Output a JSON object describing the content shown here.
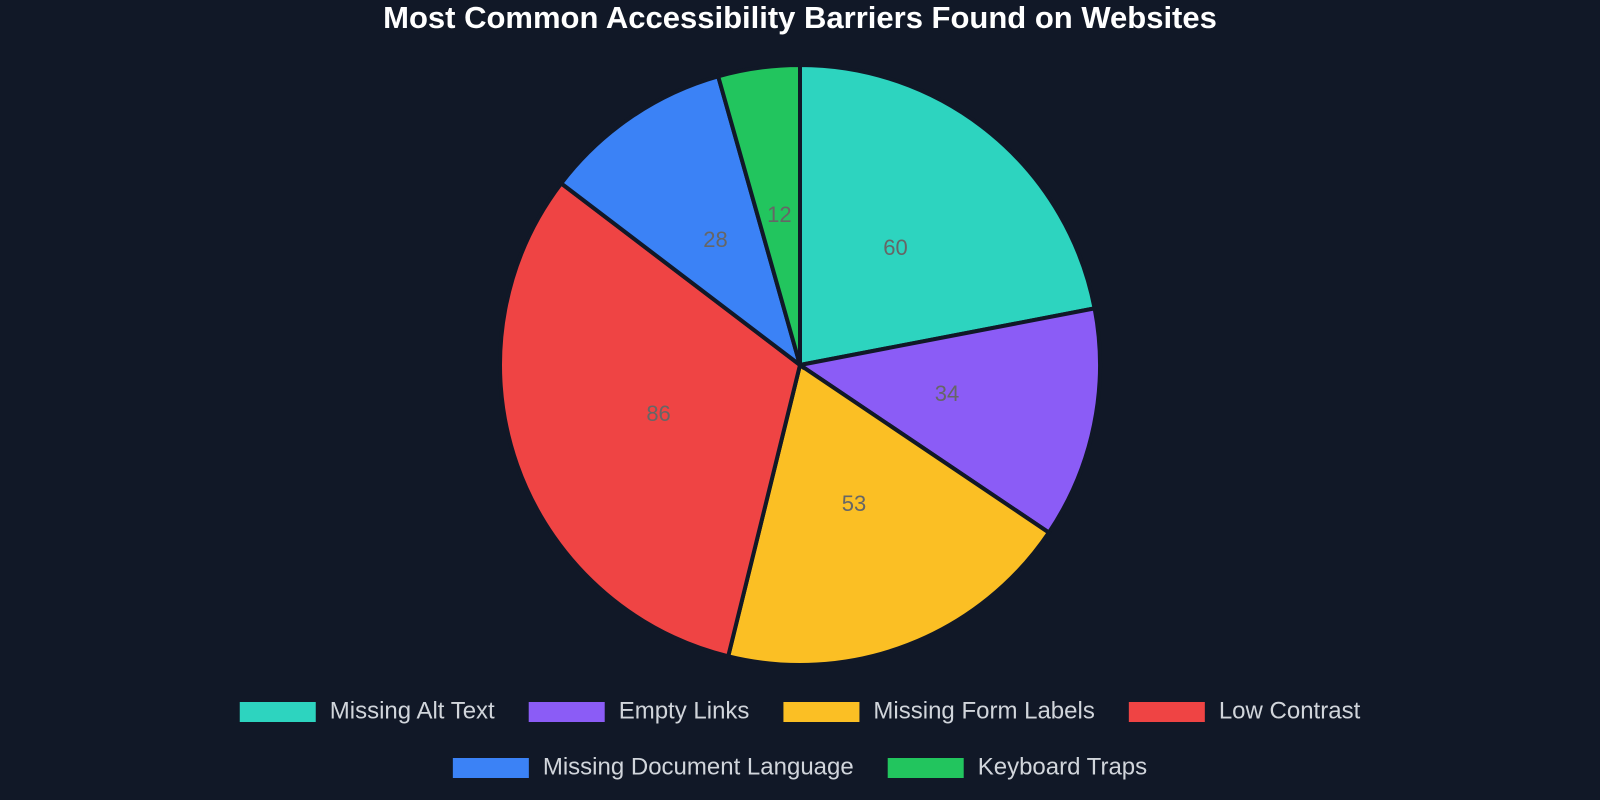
{
  "chart_data": {
    "type": "pie",
    "title": "Most Common Accessibility Barriers Found on Websites",
    "categories": [
      "Missing Alt Text",
      "Empty Links",
      "Missing Form Labels",
      "Low Contrast",
      "Missing Document Language",
      "Keyboard Traps"
    ],
    "values": [
      60,
      34,
      53,
      86,
      28,
      12
    ],
    "colors": [
      "#2dd4bf",
      "#8b5cf6",
      "#fbbf24",
      "#ef4444",
      "#3b82f6",
      "#22c55e"
    ],
    "legend": "bottom"
  }
}
